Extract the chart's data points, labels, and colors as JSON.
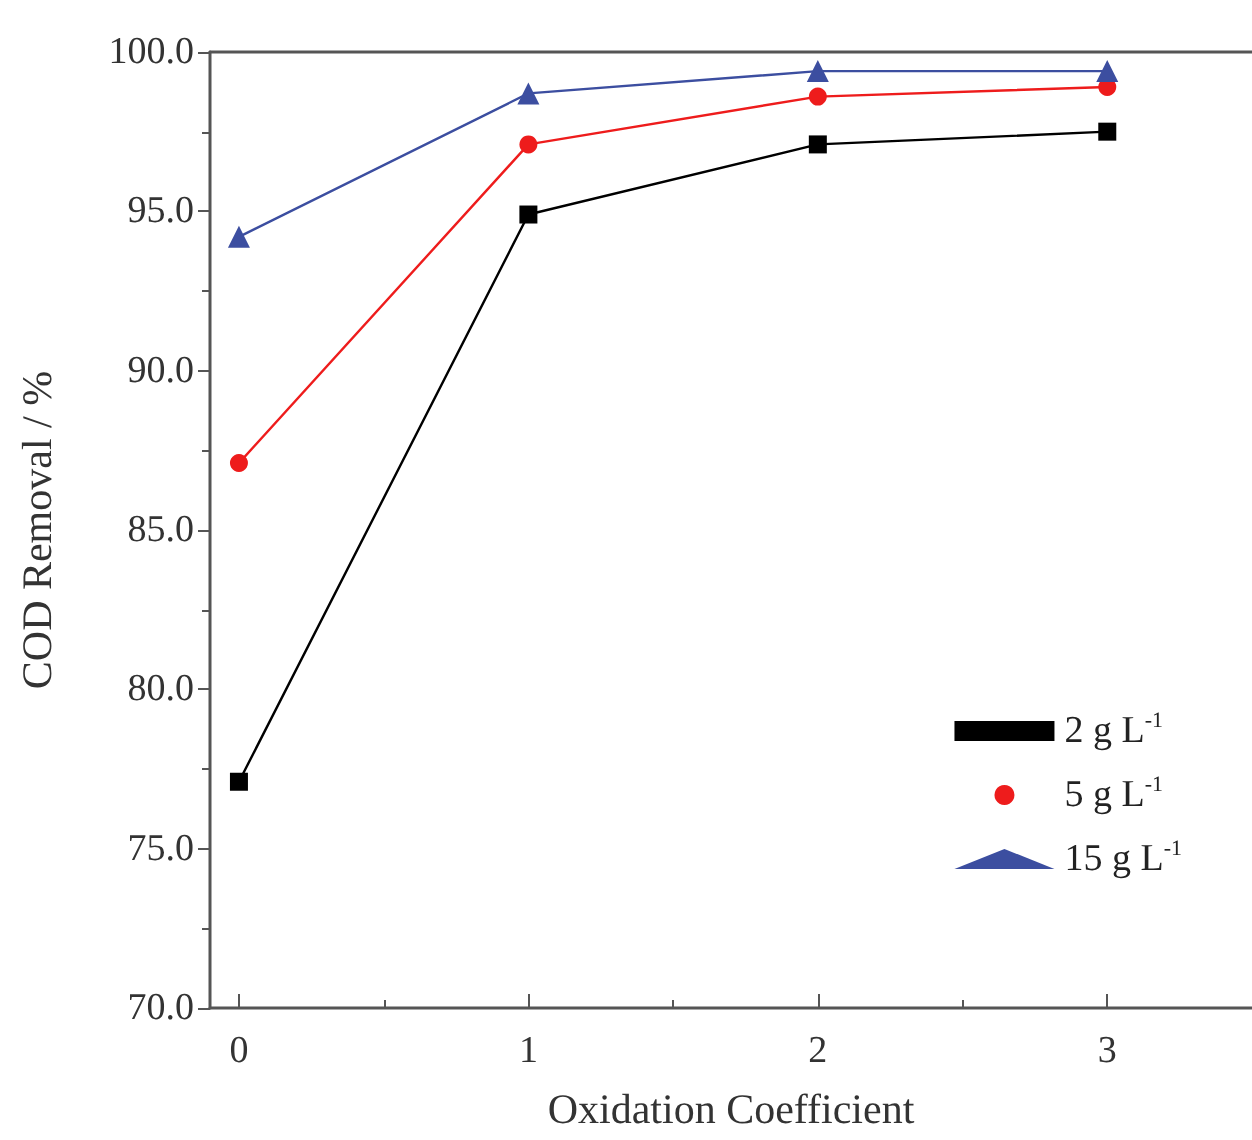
{
  "chart_data": {
    "type": "line",
    "xlabel": "Oxidation Coefficient",
    "ylabel": "COD Removal / %",
    "x": [
      0,
      1,
      2,
      3
    ],
    "series": [
      {
        "name": "2 g L$^{-1}$",
        "color": "#000000",
        "marker": "square",
        "values": [
          77.1,
          94.9,
          97.1,
          97.5
        ]
      },
      {
        "name": "5 g L$^{-1}$",
        "color": "#ee1c1c",
        "marker": "circle",
        "values": [
          87.1,
          97.1,
          98.6,
          98.9
        ]
      },
      {
        "name": "15 g L$^{-1}$",
        "color": "#3c4ea0",
        "marker": "triangle",
        "values": [
          94.2,
          98.7,
          99.4,
          99.4
        ]
      }
    ],
    "xlim": [
      -0.1,
      3.5
    ],
    "xticks": [
      0,
      1,
      2,
      3
    ],
    "ylim": [
      70,
      100
    ],
    "yticks": [
      {
        "value": 70,
        "label": "70.0"
      },
      {
        "value": 75,
        "label": "75.0"
      },
      {
        "value": 80,
        "label": "80.0"
      },
      {
        "value": 85,
        "label": "85.0"
      },
      {
        "value": 90,
        "label": "90.0"
      },
      {
        "value": 95,
        "label": "95.0"
      },
      {
        "value": 100,
        "label": "100.0"
      }
    ],
    "legend": "bottom right",
    "grid": false,
    "line_style": "solid"
  }
}
